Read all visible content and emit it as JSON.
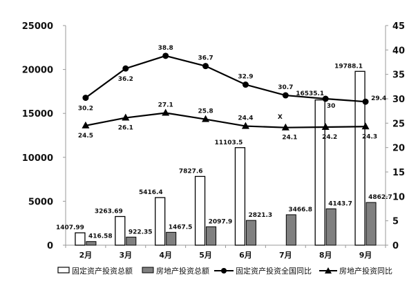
{
  "chart_data": {
    "type": "bar",
    "categories": [
      "2月",
      "3月",
      "4月",
      "5月",
      "6月",
      "7月",
      "8月",
      "9月"
    ],
    "y_left": {
      "lim": [
        0,
        25000
      ],
      "ticks": [
        "0",
        "5000",
        "10000",
        "15000",
        "20000",
        "25000"
      ]
    },
    "y_right": {
      "lim": [
        0,
        45
      ],
      "ticks": [
        "0",
        "5",
        "10",
        "15",
        "20",
        "25",
        "30",
        "35",
        "40",
        "45"
      ]
    },
    "bar_series": [
      {
        "name": "固定资产投资总额",
        "color": "#ffffff",
        "values": [
          1407.99,
          3263.69,
          5416.4,
          7827.6,
          11103.5,
          null,
          16535.1,
          19788.1
        ],
        "labels": [
          "1407.99",
          "3263.69",
          "5416.4",
          "7827.6",
          "11103.5",
          "X",
          "16535.1",
          "19788.1"
        ]
      },
      {
        "name": "房地产投资总额",
        "color": "#808080",
        "values": [
          416.58,
          922.35,
          1467.5,
          2097.9,
          2821.3,
          3466.8,
          4143.7,
          4862.7
        ],
        "labels": [
          "416.58",
          "922.35",
          "1467.5",
          "2097.9",
          "2821.3",
          "3466.8",
          "4143.7",
          "4862.7"
        ]
      }
    ],
    "line_series": [
      {
        "name": "固定资产投资全国同比",
        "marker": "circle",
        "values": [
          30.2,
          36.2,
          38.8,
          36.7,
          32.9,
          30.7,
          30,
          29.4
        ],
        "labels": [
          "30.2",
          "36.2",
          "38.8",
          "36.7",
          "32.9",
          "30.7",
          "30",
          "29.4"
        ]
      },
      {
        "name": "房地产投资同比",
        "marker": "triangle",
        "values": [
          24.5,
          26.1,
          27.1,
          25.8,
          24.4,
          24.1,
          24.2,
          24.3
        ],
        "labels": [
          "24.5",
          "26.1",
          "27.1",
          "25.8",
          "24.4",
          "24.1",
          "24.2",
          "24.3"
        ]
      }
    ],
    "grid": false,
    "legend_position": "bottom"
  }
}
